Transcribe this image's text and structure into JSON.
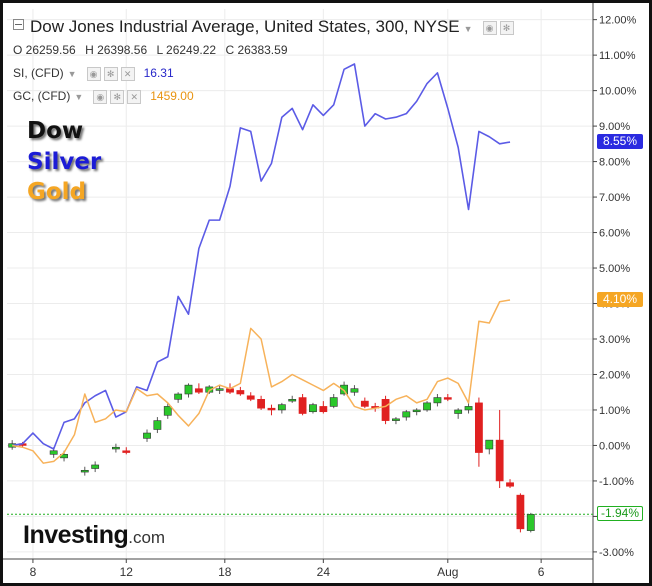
{
  "header": {
    "title": "Dow Jones Industrial Average, United States, 300, NYSE",
    "ohlc": {
      "open": "O 26259.56",
      "high": "H 26398.56",
      "low": "L 26249.22",
      "close": "C 26383.59"
    },
    "overlays": [
      {
        "label": "SI, (CFD)",
        "value": "16.31",
        "color": "#2727c9"
      },
      {
        "label": "GC, (CFD)",
        "value": "1459.00",
        "color": "#f29b1a"
      }
    ]
  },
  "annotations": {
    "dow": {
      "text": "Dow",
      "color": "#111111"
    },
    "silver": {
      "text": "Silver",
      "color": "#1c1cd6"
    },
    "gold": {
      "text": "Gold",
      "color": "#f5a623"
    }
  },
  "logo": {
    "brand": "Investing",
    "suffix": ".com"
  },
  "chart_data": {
    "type": "line",
    "x_ticks": [
      {
        "label": "8",
        "t": 2
      },
      {
        "label": "12",
        "t": 11
      },
      {
        "label": "18",
        "t": 20.5
      },
      {
        "label": "24",
        "t": 30
      },
      {
        "label": "Aug",
        "t": 42
      },
      {
        "label": "6",
        "t": 51
      }
    ],
    "xlim": [
      -0.5,
      56
    ],
    "ylim": [
      -3.2,
      12.3
    ],
    "y_ticks": [
      "12.00%",
      "11.00%",
      "10.00%",
      "9.00%",
      "8.00%",
      "7.00%",
      "6.00%",
      "5.00%",
      "4.00%",
      "3.00%",
      "2.00%",
      "1.00%",
      "0.00%",
      "-1.00%",
      "-2.00%",
      "-3.00%"
    ],
    "y_tick_values": [
      12,
      11,
      10,
      9,
      8,
      7,
      6,
      5,
      4,
      3,
      2,
      1,
      0,
      -1,
      -2,
      -3
    ],
    "baseline": {
      "value": -1.94,
      "label": "-1.94%",
      "color": "#21b021"
    },
    "series": [
      {
        "name": "SI, (CFD)",
        "color": "#5b5be6",
        "last_label": "8.55%",
        "last_value": 8.55,
        "values": [
          0,
          0.05,
          0.35,
          0.05,
          -0.1,
          0.65,
          0.75,
          1.2,
          1.4,
          1.55,
          0.8,
          0.95,
          1.65,
          1.55,
          2.35,
          2.5,
          4.2,
          3.7,
          5.55,
          6.35,
          6.35,
          7.3,
          8.95,
          8.85,
          7.45,
          7.95,
          9.25,
          9.5,
          8.9,
          9.6,
          9.3,
          9.6,
          10.6,
          10.75,
          9,
          9.35,
          9.2,
          9.25,
          9.35,
          9.7,
          10.2,
          10.5,
          9.5,
          8.4,
          6.65,
          8.85,
          8.7,
          8.5,
          8.55
        ]
      },
      {
        "name": "GC, (CFD)",
        "color": "#f7b25a",
        "last_label": "4.10%",
        "last_value": 4.1,
        "values": [
          0,
          -0.05,
          -0.15,
          -0.5,
          -0.45,
          -0.2,
          0.3,
          1.45,
          0.65,
          0.75,
          1.0,
          0.95,
          1.6,
          1.4,
          1.45,
          1.2,
          0.85,
          0.55,
          0.9,
          1.55,
          1.7,
          1.6,
          1.75,
          3.3,
          3.0,
          1.65,
          1.8,
          2.0,
          1.85,
          1.7,
          1.55,
          1.75,
          1.55,
          1.1,
          1.0,
          1.05,
          1.1,
          1.3,
          1.4,
          1.2,
          1.3,
          1.8,
          1.9,
          1.75,
          1.2,
          3.5,
          3.45,
          4.05,
          4.1
        ]
      }
    ],
    "candles": {
      "name": "Dow Jones Industrial Average",
      "up_color": "#2bc72b",
      "down_color": "#e02020",
      "ohlc": [
        [
          -0.05,
          0.15,
          -0.12,
          0.05
        ],
        [
          0.05,
          0.1,
          -0.05,
          0.0
        ],
        [
          -0.25,
          -0.05,
          -0.35,
          -0.15
        ],
        [
          -0.35,
          -0.15,
          -0.45,
          -0.25
        ],
        [
          -0.75,
          -0.6,
          -0.85,
          -0.7
        ],
        [
          -0.65,
          -0.45,
          -0.75,
          -0.55
        ],
        [
          -0.1,
          0.05,
          -0.2,
          -0.05
        ],
        [
          -0.15,
          -0.05,
          -0.25,
          -0.2
        ],
        [
          0.2,
          0.45,
          0.1,
          0.35
        ],
        [
          0.45,
          0.8,
          0.35,
          0.7
        ],
        [
          0.85,
          1.2,
          0.75,
          1.1
        ],
        [
          1.3,
          1.5,
          1.2,
          1.45
        ],
        [
          1.45,
          1.75,
          1.35,
          1.7
        ],
        [
          1.6,
          1.75,
          1.45,
          1.5
        ],
        [
          1.5,
          1.7,
          1.45,
          1.65
        ],
        [
          1.55,
          1.7,
          1.45,
          1.6
        ],
        [
          1.6,
          1.75,
          1.45,
          1.5
        ],
        [
          1.55,
          1.65,
          1.4,
          1.45
        ],
        [
          1.4,
          1.5,
          1.25,
          1.3
        ],
        [
          1.3,
          1.4,
          1.0,
          1.05
        ],
        [
          1.05,
          1.15,
          0.85,
          1.0
        ],
        [
          1.0,
          1.2,
          0.9,
          1.15
        ],
        [
          1.25,
          1.4,
          1.2,
          1.3
        ],
        [
          1.35,
          1.45,
          0.85,
          0.9
        ],
        [
          0.95,
          1.2,
          0.9,
          1.15
        ],
        [
          1.1,
          1.25,
          0.9,
          0.95
        ],
        [
          1.1,
          1.45,
          1.05,
          1.35
        ],
        [
          1.45,
          1.8,
          1.4,
          1.7
        ],
        [
          1.5,
          1.7,
          1.4,
          1.6
        ],
        [
          1.25,
          1.35,
          1.05,
          1.1
        ],
        [
          1.1,
          1.2,
          0.95,
          1.05
        ],
        [
          1.3,
          1.4,
          0.6,
          0.7
        ],
        [
          0.7,
          0.8,
          0.6,
          0.75
        ],
        [
          0.8,
          1.0,
          0.7,
          0.95
        ],
        [
          0.95,
          1.05,
          0.85,
          1.0
        ],
        [
          1.0,
          1.25,
          0.95,
          1.2
        ],
        [
          1.2,
          1.45,
          1.1,
          1.35
        ],
        [
          1.35,
          1.45,
          1.25,
          1.3
        ],
        [
          0.9,
          1.05,
          0.75,
          1.0
        ],
        [
          1.0,
          1.2,
          0.9,
          1.1
        ],
        [
          1.2,
          1.35,
          -0.6,
          -0.2
        ],
        [
          -0.1,
          0.05,
          -0.25,
          0.15
        ],
        [
          0.15,
          1.0,
          -1.2,
          -1.0
        ],
        [
          -1.05,
          -0.95,
          -1.2,
          -1.15
        ],
        [
          -1.4,
          -1.35,
          -2.45,
          -2.35
        ],
        [
          -2.4,
          -1.9,
          -2.45,
          -1.94
        ]
      ],
      "t": [
        0,
        1,
        4,
        5,
        7,
        8,
        10,
        11,
        13,
        14,
        15,
        16,
        17,
        18,
        19,
        20,
        21,
        22,
        23,
        24,
        25,
        26,
        27,
        28,
        29,
        30,
        31,
        32,
        33,
        34,
        35,
        36,
        37,
        38,
        39,
        40,
        41,
        42,
        43,
        44,
        45,
        46,
        47,
        48,
        49,
        50
      ]
    }
  }
}
